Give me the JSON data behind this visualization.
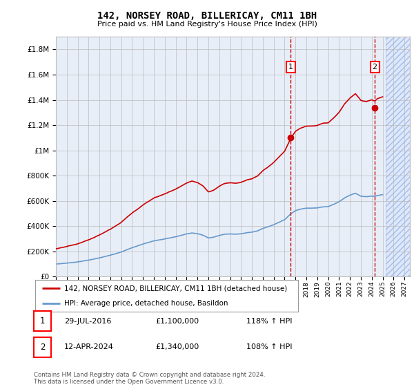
{
  "title": "142, NORSEY ROAD, BILLERICAY, CM11 1BH",
  "subtitle": "Price paid vs. HM Land Registry's House Price Index (HPI)",
  "hpi_label": "HPI: Average price, detached house, Basildon",
  "property_label": "142, NORSEY ROAD, BILLERICAY, CM11 1BH (detached house)",
  "footer": "Contains HM Land Registry data © Crown copyright and database right 2024.\nThis data is licensed under the Open Government Licence v3.0.",
  "sale1": {
    "date": "29-JUL-2016",
    "price": 1100000,
    "hpi_pct": "118% ↑ HPI",
    "label": "1"
  },
  "sale2": {
    "date": "12-APR-2024",
    "price": 1340000,
    "hpi_pct": "108% ↑ HPI",
    "label": "2"
  },
  "ylim": [
    0,
    1900000
  ],
  "yticks": [
    0,
    200000,
    400000,
    600000,
    800000,
    1000000,
    1200000,
    1400000,
    1600000,
    1800000
  ],
  "xlim_start": 1995.0,
  "xlim_end": 2027.5,
  "property_color": "#cc0000",
  "hpi_color": "#6699cc",
  "background_color": "#e8eef8",
  "hatched_region_color": "#dce8ff",
  "grid_color": "#bbbbbb",
  "sale1_x": 2016.57,
  "sale2_x": 2024.28,
  "hatch_start": 2025.3
}
